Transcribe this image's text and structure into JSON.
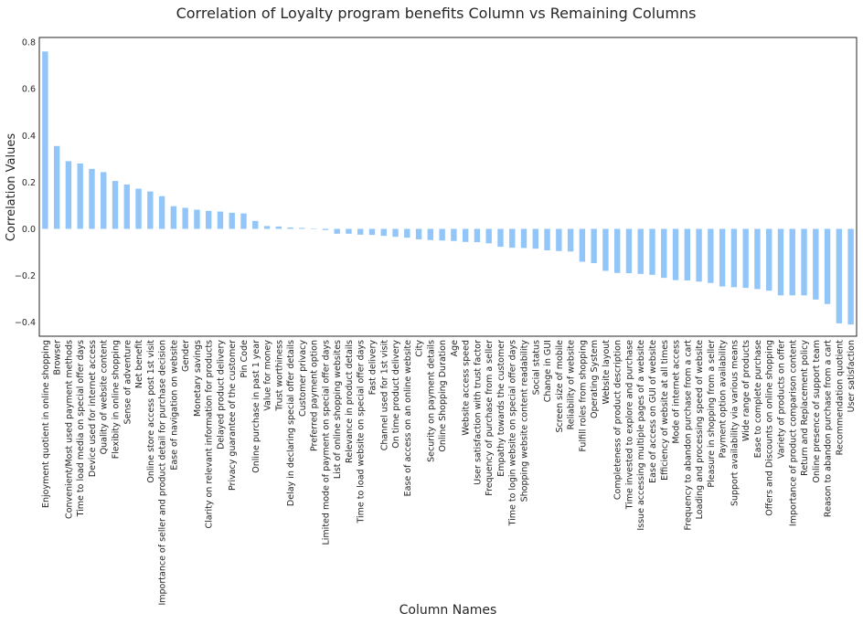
{
  "chart_data": {
    "type": "bar",
    "title": "Correlation of Loyalty program benefits Column vs Remaining Columns",
    "xlabel": "Column Names",
    "ylabel": "Correlation Values",
    "ylim": [
      -0.46,
      0.82
    ],
    "yticks": [
      -0.4,
      -0.2,
      0.0,
      0.2,
      0.4,
      0.6,
      0.8
    ],
    "ytick_labels": [
      "−0.4",
      "−0.2",
      "0.0",
      "0.2",
      "0.4",
      "0.6",
      "0.8"
    ],
    "grid": false,
    "bar_color": "#92c6f9",
    "categories": [
      "Enjoyment quotient in online shopping",
      "Browser",
      "Convenient/Most used payment methods",
      "Time to load media on special offer days",
      "Device used for internet access",
      "Quality of website content",
      "Flexibity in online shopping",
      "Sense of adventure",
      "Net benefit",
      "Online store access post 1st visit",
      "Importance of seller and product detail for purchase decision",
      "Ease of navigation on website",
      "Gender",
      "Monetary savings",
      "Clarity on relevant information for products",
      "Delayed product delivery",
      "Privacy guarantee of the customer",
      "Pin Code",
      "Online purchase in past 1 year",
      "Value for money",
      "Trust worthiness",
      "Delay in declaring special offer details",
      "Customer privacy",
      "Preferred payment option",
      "Limited mode of payment on special offer days",
      "List of online shopping websites",
      "Relevance in product details",
      "Time to load website on special offer days",
      "Fast delivery",
      "Channel used for 1st visit",
      "On time product delivery",
      "Ease of access on an online website",
      "City",
      "Security on payment details",
      "Online Shopping Duration",
      "Age",
      "Website access speed",
      "User satisfaction with trust factor",
      "Frequency of purchase from a seller",
      "Empathy towards the customer",
      "Time to login website on special offer days",
      "Shopping website content readability",
      "Social status",
      "Change in GUI",
      "Screen size of mobile",
      "Reliability of website",
      "Fulfill roles from shopping",
      "Operating System",
      "Website layout",
      "Completeness of product description",
      "Time invested to explore and purchase",
      "Issue accessing multiple pages of a website",
      "Ease of access on GUI of website",
      "Efficiency of website at all times",
      "Mode of internet access",
      "Frequency to abandon purchase from a cart",
      "Loading and processing speed of website",
      "Pleasure in shopping from a seller",
      "Payment option availability",
      "Support availability via various means",
      "Wide range of products",
      "Ease to complete purchase",
      "Offers and Discounts on online shopping",
      "Variety of products on offer",
      "Importance of product comparison content",
      "Return and Replacement policy",
      "Online presence of support team",
      "Reason to abandon purchase from a cart",
      "Recommendation quotient",
      "User satisfaction"
    ],
    "values": [
      0.76,
      0.355,
      0.29,
      0.28,
      0.257,
      0.243,
      0.205,
      0.19,
      0.172,
      0.16,
      0.14,
      0.097,
      0.09,
      0.082,
      0.077,
      0.074,
      0.069,
      0.066,
      0.034,
      0.012,
      0.01,
      0.006,
      0.004,
      0.002,
      -0.005,
      -0.021,
      -0.021,
      -0.025,
      -0.026,
      -0.03,
      -0.034,
      -0.038,
      -0.045,
      -0.048,
      -0.05,
      -0.052,
      -0.056,
      -0.057,
      -0.062,
      -0.077,
      -0.081,
      -0.082,
      -0.085,
      -0.092,
      -0.095,
      -0.097,
      -0.141,
      -0.147,
      -0.18,
      -0.189,
      -0.19,
      -0.193,
      -0.197,
      -0.21,
      -0.22,
      -0.221,
      -0.226,
      -0.232,
      -0.247,
      -0.25,
      -0.253,
      -0.258,
      -0.265,
      -0.285,
      -0.285,
      -0.285,
      -0.303,
      -0.322,
      -0.405,
      -0.41
    ]
  }
}
